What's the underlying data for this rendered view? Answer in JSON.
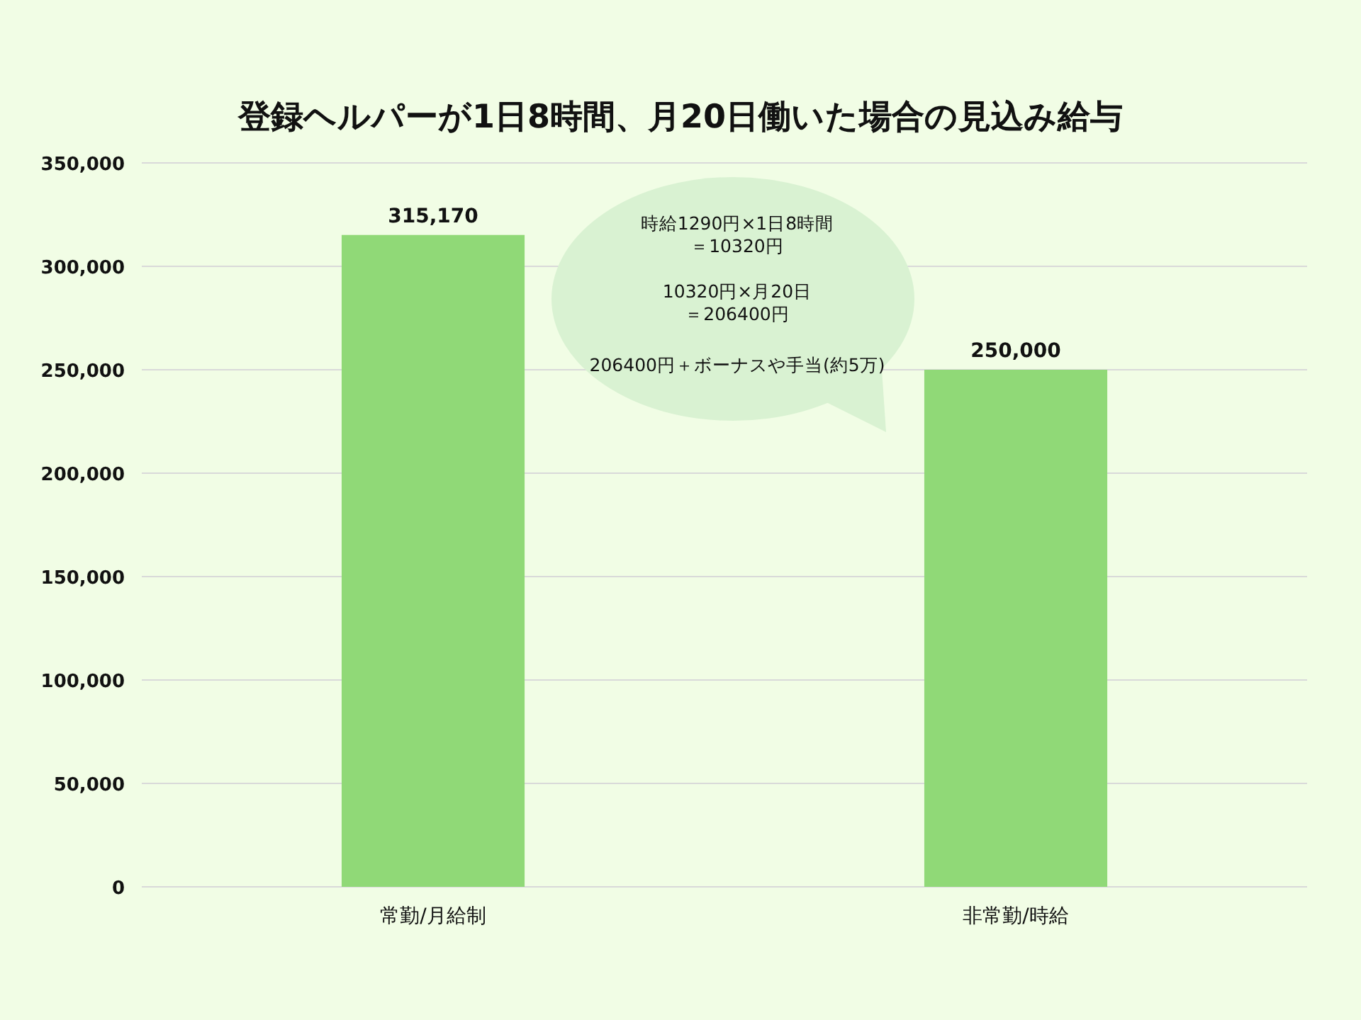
{
  "chart_data": {
    "type": "bar",
    "title": "登録ヘルパーが1日8時間、月20日働いた場合の見込み給与",
    "categories": [
      "常勤/月給制",
      "非常勤/時給"
    ],
    "values": [
      315170,
      250000
    ],
    "value_labels": [
      "315,170",
      "250,000"
    ],
    "color": "#90d977",
    "ylim": [
      0,
      350000
    ],
    "yticks": [
      {
        "value": 0,
        "label": "0"
      },
      {
        "value": 50000,
        "label": "50,000"
      },
      {
        "value": 100000,
        "label": "100,000"
      },
      {
        "value": 150000,
        "label": "150,000"
      },
      {
        "value": 200000,
        "label": "200,000"
      },
      {
        "value": 250000,
        "label": "250,000"
      },
      {
        "value": 300000,
        "label": "300,000"
      },
      {
        "value": 350000,
        "label": "350,000"
      }
    ],
    "grid": "y",
    "annotations": [
      "時給1290円×1日8時間",
      "＝10320円",
      "10320円×月20日",
      "＝206400円",
      "206400円＋ボーナスや手当(約5万)"
    ]
  }
}
